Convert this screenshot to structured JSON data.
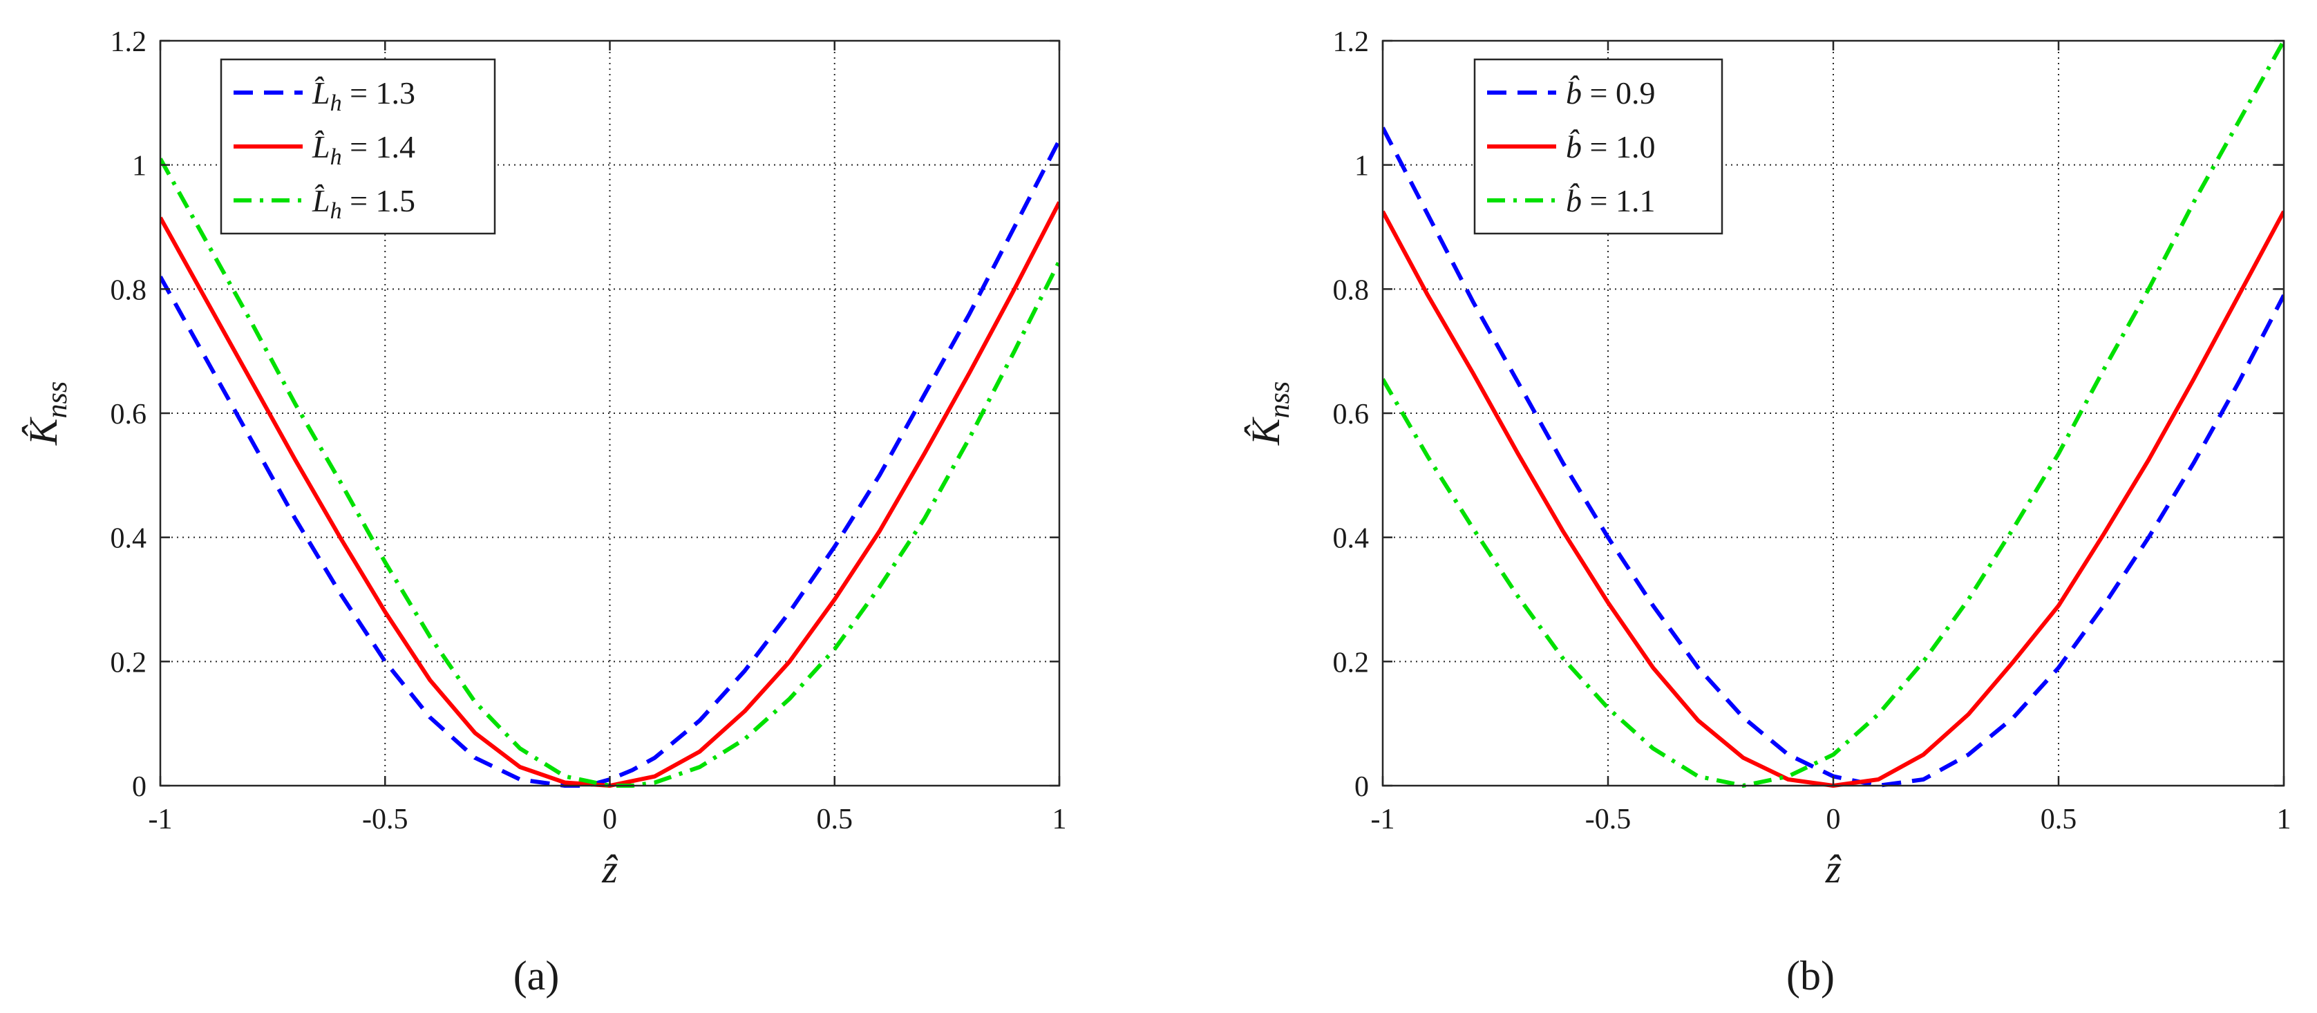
{
  "chart_data": [
    {
      "type": "line",
      "panel_label": "(a)",
      "xlabel": "ẑ",
      "ylabel_main": "K̂",
      "ylabel_sub": "nss",
      "xlim": [
        -1,
        1
      ],
      "ylim": [
        0,
        1.2
      ],
      "xticks": [
        -1,
        -0.5,
        0,
        0.5,
        1
      ],
      "xtick_labels": [
        "-1",
        "-0.5",
        "0",
        "0.5",
        "1"
      ],
      "yticks": [
        0,
        0.2,
        0.4,
        0.6,
        0.8,
        1,
        1.2
      ],
      "ytick_labels": [
        "0",
        "0.2",
        "0.4",
        "0.6",
        "0.8",
        "1",
        "1.2"
      ],
      "grid": true,
      "legend_position": "top-left",
      "series": [
        {
          "name": "L̂h = 1.3",
          "legend_main": "L̂",
          "legend_sub": "h",
          "legend_value": " = 1.3",
          "color": "#0000ff",
          "style": "dashed",
          "x": [
            -1,
            -0.9,
            -0.8,
            -0.7,
            -0.6,
            -0.5,
            -0.4,
            -0.3,
            -0.2,
            -0.1,
            -0.05,
            0,
            0.05,
            0.1,
            0.2,
            0.3,
            0.4,
            0.5,
            0.6,
            0.7,
            0.8,
            0.9,
            1
          ],
          "y": [
            0.82,
            0.69,
            0.56,
            0.43,
            0.31,
            0.2,
            0.11,
            0.045,
            0.01,
            0.0,
            0.0,
            0.01,
            0.025,
            0.045,
            0.105,
            0.185,
            0.28,
            0.385,
            0.5,
            0.63,
            0.76,
            0.9,
            1.04
          ]
        },
        {
          "name": "L̂h = 1.4",
          "legend_main": "L̂",
          "legend_sub": "h",
          "legend_value": " = 1.4",
          "color": "#ff0000",
          "style": "solid",
          "x": [
            -1,
            -0.9,
            -0.8,
            -0.7,
            -0.6,
            -0.5,
            -0.4,
            -0.3,
            -0.2,
            -0.1,
            0,
            0.1,
            0.2,
            0.3,
            0.4,
            0.5,
            0.6,
            0.7,
            0.8,
            0.9,
            1
          ],
          "y": [
            0.915,
            0.785,
            0.655,
            0.525,
            0.4,
            0.28,
            0.17,
            0.085,
            0.03,
            0.005,
            0.0,
            0.015,
            0.055,
            0.12,
            0.2,
            0.3,
            0.41,
            0.535,
            0.665,
            0.8,
            0.94
          ]
        },
        {
          "name": "L̂h = 1.5",
          "legend_main": "L̂",
          "legend_sub": "h",
          "legend_value": " = 1.5",
          "color": "#00e000",
          "style": "dashdot",
          "x": [
            -1,
            -0.9,
            -0.8,
            -0.7,
            -0.6,
            -0.5,
            -0.4,
            -0.3,
            -0.2,
            -0.1,
            0,
            0.05,
            0.1,
            0.2,
            0.3,
            0.4,
            0.5,
            0.6,
            0.7,
            0.8,
            0.9,
            1
          ],
          "y": [
            1.01,
            0.88,
            0.75,
            0.615,
            0.49,
            0.36,
            0.24,
            0.135,
            0.06,
            0.015,
            0.0,
            0.0,
            0.005,
            0.03,
            0.075,
            0.14,
            0.22,
            0.32,
            0.43,
            0.56,
            0.7,
            0.845
          ]
        }
      ]
    },
    {
      "type": "line",
      "panel_label": "(b)",
      "xlabel": "ẑ",
      "ylabel_main": "K̂",
      "ylabel_sub": "nss",
      "xlim": [
        -1,
        1
      ],
      "ylim": [
        0,
        1.2
      ],
      "xticks": [
        -1,
        -0.5,
        0,
        0.5,
        1
      ],
      "xtick_labels": [
        "-1",
        "-0.5",
        "0",
        "0.5",
        "1"
      ],
      "yticks": [
        0,
        0.2,
        0.4,
        0.6,
        0.8,
        1,
        1.2
      ],
      "ytick_labels": [
        "0",
        "0.2",
        "0.4",
        "0.6",
        "0.8",
        "1",
        "1.2"
      ],
      "grid": true,
      "legend_position": "top-left",
      "series": [
        {
          "name": "b̂ = 0.9",
          "legend_main": "b̂",
          "legend_sub": "",
          "legend_value": " = 0.9",
          "color": "#0000ff",
          "style": "dashed",
          "x": [
            -1,
            -0.9,
            -0.8,
            -0.7,
            -0.6,
            -0.5,
            -0.4,
            -0.3,
            -0.2,
            -0.1,
            0,
            0.1,
            0.2,
            0.3,
            0.4,
            0.5,
            0.6,
            0.7,
            0.8,
            0.9,
            1
          ],
          "y": [
            1.06,
            0.92,
            0.78,
            0.65,
            0.52,
            0.4,
            0.29,
            0.19,
            0.11,
            0.05,
            0.015,
            0.0,
            0.01,
            0.05,
            0.11,
            0.19,
            0.29,
            0.4,
            0.52,
            0.65,
            0.79
          ]
        },
        {
          "name": "b̂ = 1.0",
          "legend_main": "b̂",
          "legend_sub": "",
          "legend_value": " = 1.0",
          "color": "#ff0000",
          "style": "solid",
          "x": [
            -1,
            -0.9,
            -0.8,
            -0.7,
            -0.6,
            -0.5,
            -0.4,
            -0.3,
            -0.2,
            -0.1,
            0,
            0.1,
            0.2,
            0.3,
            0.4,
            0.5,
            0.6,
            0.7,
            0.8,
            0.9,
            1
          ],
          "y": [
            0.925,
            0.79,
            0.665,
            0.535,
            0.41,
            0.295,
            0.19,
            0.105,
            0.045,
            0.01,
            0.0,
            0.01,
            0.05,
            0.115,
            0.2,
            0.29,
            0.405,
            0.525,
            0.655,
            0.79,
            0.925
          ]
        },
        {
          "name": "b̂ = 1.1",
          "legend_main": "b̂",
          "legend_sub": "",
          "legend_value": " = 1.1",
          "color": "#00e000",
          "style": "dashdot",
          "x": [
            -1,
            -0.9,
            -0.8,
            -0.7,
            -0.6,
            -0.5,
            -0.4,
            -0.3,
            -0.2,
            -0.1,
            0,
            0.1,
            0.2,
            0.3,
            0.4,
            0.5,
            0.6,
            0.7,
            0.8,
            0.9,
            1
          ],
          "y": [
            0.655,
            0.53,
            0.415,
            0.305,
            0.205,
            0.125,
            0.06,
            0.015,
            0.0,
            0.015,
            0.05,
            0.115,
            0.2,
            0.3,
            0.415,
            0.535,
            0.67,
            0.8,
            0.94,
            1.07,
            1.2
          ]
        }
      ]
    }
  ]
}
